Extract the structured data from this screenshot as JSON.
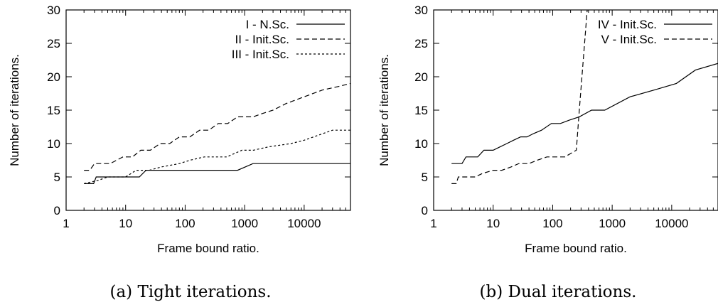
{
  "chart_data": [
    {
      "type": "line",
      "caption": "(a) Tight iterations.",
      "xlabel": "Frame bound ratio.",
      "ylabel": "Number of iterations.",
      "xscale": "log",
      "xlim": [
        1,
        60000
      ],
      "ylim": [
        0,
        30
      ],
      "xticks": [
        1,
        10,
        100,
        1000,
        10000
      ],
      "xtick_labels": [
        "1",
        "10",
        "100",
        "1000",
        "10000"
      ],
      "yticks": [
        0,
        5,
        10,
        15,
        20,
        25,
        30
      ],
      "ytick_labels": [
        "0",
        "5",
        "10",
        "15",
        "20",
        "25",
        "30"
      ],
      "legend_position": "top-right",
      "series": [
        {
          "name": "I - N.Sc.",
          "dash": "solid",
          "x": [
            2,
            2.9,
            3.2,
            11,
            17,
            22,
            760,
            1380,
            60000
          ],
          "y": [
            4,
            4,
            5,
            5,
            5,
            6,
            6,
            7,
            7
          ]
        },
        {
          "name": "II - Init.Sc.",
          "dash": "dashed",
          "x": [
            2,
            2.5,
            3,
            5.5,
            9,
            13,
            18,
            26,
            38,
            55,
            80,
            120,
            175,
            250,
            360,
            520,
            760,
            1380,
            2000,
            3000,
            5000,
            10000,
            20000,
            40000,
            60000
          ],
          "y": [
            6,
            6,
            7,
            7,
            8,
            8,
            9,
            9,
            10,
            10,
            11,
            11,
            12,
            12,
            13,
            13,
            14,
            14,
            14.5,
            15,
            16,
            17,
            18,
            18.6,
            19
          ]
        },
        {
          "name": "III - Init.Sc.",
          "dash": "dotted",
          "x": [
            2,
            3.5,
            5,
            10,
            15,
            25,
            40,
            80,
            120,
            210,
            500,
            900,
            1400,
            2500,
            6000,
            10000,
            30000,
            60000
          ],
          "y": [
            4,
            4.5,
            5,
            5,
            6,
            6,
            6.5,
            7,
            7.5,
            8,
            8,
            9,
            9,
            9.5,
            10,
            10.5,
            12,
            12
          ]
        }
      ]
    },
    {
      "type": "line",
      "caption": "(b) Dual iterations.",
      "xlabel": "Frame bound ratio.",
      "ylabel": "Number of iterations.",
      "xscale": "log",
      "xlim": [
        1,
        60000
      ],
      "ylim": [
        0,
        30
      ],
      "xticks": [
        1,
        10,
        100,
        1000,
        10000
      ],
      "xtick_labels": [
        "1",
        "10",
        "100",
        "1000",
        "10000"
      ],
      "yticks": [
        0,
        5,
        10,
        15,
        20,
        25,
        30
      ],
      "ytick_labels": [
        "0",
        "5",
        "10",
        "15",
        "20",
        "25",
        "30"
      ],
      "legend_position": "top-right",
      "series": [
        {
          "name": "IV - Init.Sc.",
          "dash": "solid",
          "x": [
            2,
            3,
            3.5,
            5.5,
            7,
            10,
            13,
            17,
            22,
            29,
            37,
            48,
            65,
            95,
            135,
            190,
            280,
            450,
            750,
            2000,
            5000,
            12000,
            25000,
            60000
          ],
          "y": [
            7,
            7,
            8,
            8,
            9,
            9,
            9.5,
            10,
            10.5,
            11,
            11,
            11.5,
            12,
            13,
            13,
            13.5,
            14,
            15,
            15,
            17,
            18,
            19,
            21,
            22
          ]
        },
        {
          "name": "V - Init.Sc.",
          "dash": "dashed",
          "x": [
            2,
            2.4,
            2.6,
            5,
            6.5,
            10,
            14,
            20,
            27,
            40,
            55,
            80,
            160,
            200,
            250,
            280,
            380
          ],
          "y": [
            4,
            4,
            5,
            5,
            5.5,
            6,
            6,
            6.5,
            7,
            7,
            7.5,
            8,
            8,
            8.5,
            9,
            15,
            30
          ]
        }
      ]
    }
  ]
}
